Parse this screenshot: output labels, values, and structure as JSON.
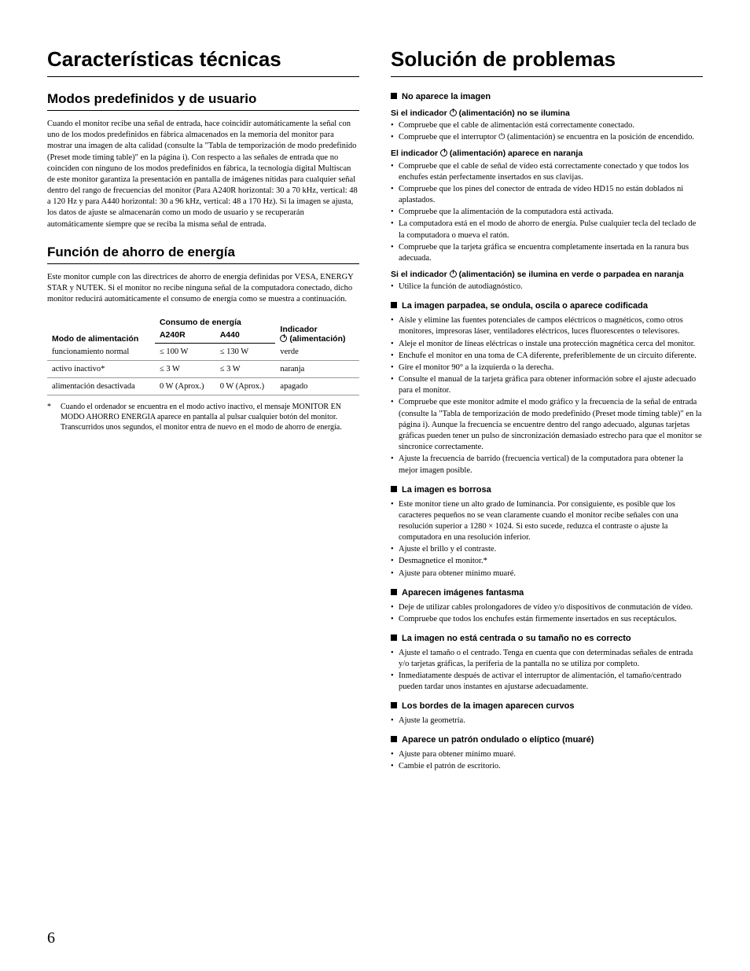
{
  "left": {
    "h1": "Características técnicas",
    "h2a": "Modos predefinidos y de usuario",
    "para_a": "Cuando el monitor recibe una señal de entrada, hace coincidir automáticamente la señal con uno de los modos predefinidos en fábrica almacenados en la memoria del monitor para mostrar una imagen de alta calidad (consulte la \"Tabla de temporización de modo predefinido (Preset mode timing table)\" en la página i). Con respecto a las señales de entrada que no coinciden con ninguno de los modos predefinidos en fábrica, la tecnología digital Multiscan de este monitor garantiza la presentación en pantalla de imágenes nítidas para cualquier señal dentro del rango de frecuencias del monitor (Para A240R horizontal: 30 a 70 kHz, vertical: 48 a 120 Hz y para A440 horizontal: 30 a 96 kHz, vertical: 48 a 170 Hz). Si la imagen se ajusta, los datos de ajuste se almacenarán como un modo de usuario y se recuperarán automáticamente siempre que se reciba la misma señal de entrada.",
    "h2b": "Función de ahorro de energía",
    "para_b": "Este monitor cumple con las directrices de ahorro de energía definidas por VESA, ENERGY STAR y NUTEK. Si el monitor no recibe ninguna señal de la computadora conectado, dicho monitor reducirá automáticamente el consumo de energía como se muestra a continuación.",
    "table": {
      "head_mode": "Modo de alimentación",
      "head_cons": "Consumo de energía",
      "head_a240r": "A240R",
      "head_a440": "A440",
      "head_ind": "Indicador",
      "head_alim": "(alimentación)",
      "rows": [
        {
          "mode": "funcionamiento normal",
          "a240r": "≤ 100 W",
          "a440": "≤ 130 W",
          "ind": "verde"
        },
        {
          "mode": "activo inactivo*",
          "a240r": "≤ 3 W",
          "a440": "≤ 3 W",
          "ind": "naranja"
        },
        {
          "mode": "alimentación desactivada",
          "a240r": "0 W (Aprox.)",
          "a440": "0 W (Aprox.)",
          "ind": "apagado"
        }
      ]
    },
    "footnote_mark": "*",
    "footnote": "Cuando el ordenador se encuentra en el modo activo inactivo, el mensaje MONITOR EN MODO AHORRO ENERGIA aparece en pantalla al pulsar cualquier botón del monitor. Transcurridos unos segundos, el monitor entra de nuevo en el modo de ahorro de energía."
  },
  "right": {
    "h1": "Solución de problemas",
    "s1": {
      "title": "No aparece la imagen",
      "c1": "Si el indicador ",
      "c1b": " (alimentación) no se ilumina",
      "c1_items": [
        "Compruebe que el cable de alimentación está correctamente conectado.",
        "Compruebe que el interruptor ⏻ (alimentación) se encuentra en la posición de encendido."
      ],
      "c2": "El indicador ",
      "c2b": " (alimentación) aparece en naranja",
      "c2_items": [
        "Compruebe que el cable de señal de vídeo está correctamente conectado y que todos los enchufes están perfectamente insertados en sus clavijas.",
        "Compruebe que los pines del conector de entrada de vídeo HD15 no están doblados ni aplastados.",
        "Compruebe que la alimentación de la computadora está activada.",
        "La computadora está en el modo de ahorro de energía. Pulse cualquier tecla del teclado de la computadora o mueva el ratón.",
        "Compruebe que la tarjeta gráfica se encuentra completamente insertada en la ranura bus adecuada."
      ],
      "c3": "Si el indicador ",
      "c3b": " (alimentación) se ilumina en verde o parpadea en naranja",
      "c3_items": [
        "Utilice la función de autodiagnóstico."
      ]
    },
    "s2": {
      "title": "La imagen parpadea, se ondula, oscila o aparece codificada",
      "items": [
        "Aísle y elimine las fuentes potenciales de campos eléctricos o magnéticos, como otros monitores, impresoras láser, ventiladores eléctricos, luces fluorescentes o televisores.",
        "Aleje el monitor de líneas eléctricas o instale una protección magnética cerca del monitor.",
        "Enchufe el monitor en una toma de CA diferente, preferiblemente de un circuito diferente.",
        "Gire el monitor 90° a la izquierda o la derecha.",
        "Consulte el manual de la tarjeta gráfica para obtener información sobre el ajuste adecuado para el monitor.",
        "Compruebe que este monitor admite el modo gráfico y la frecuencia de la señal de entrada (consulte la \"Tabla de temporización de modo predefinido (Preset mode timing table)\" en la página i). Aunque la frecuencia se encuentre dentro del rango adecuado, algunas tarjetas gráficas pueden tener un pulso de sincronización demasiado estrecho para que el monitor se sincronice correctamente.",
        "Ajuste la frecuencia de barrido (frecuencia vertical) de la computadora para obtener la mejor imagen posible."
      ]
    },
    "s3": {
      "title": "La imagen es borrosa",
      "items": [
        "Este monitor tiene un alto grado de luminancia. Por consiguiente, es posible que los caracteres pequeños no se vean claramente cuando el monitor recibe señales con una resolución superior a 1280 × 1024. Si esto sucede, reduzca el contraste o ajuste la computadora en una resolución inferior.",
        "Ajuste el brillo y el contraste.",
        "Desmagnetice el monitor.*",
        "Ajuste para obtener mínimo muaré."
      ]
    },
    "s4": {
      "title": "Aparecen imágenes fantasma",
      "items": [
        "Deje de utilizar cables prolongadores de vídeo y/o dispositivos de conmutación de vídeo.",
        "Compruebe que todos los enchufes están firmemente insertados en sus receptáculos."
      ]
    },
    "s5": {
      "title": "La imagen no está centrada o su tamaño no es correcto",
      "items": [
        "Ajuste el tamaño o el centrado. Tenga en cuenta que con determinadas señales de entrada y/o tarjetas gráficas, la periferia de la pantalla no se utiliza por completo.",
        "Inmediatamente después de activar el interruptor de alimentación, el tamaño/centrado pueden tardar unos instantes en ajustarse adecuadamente."
      ]
    },
    "s6": {
      "title": "Los bordes de la imagen aparecen curvos",
      "items": [
        "Ajuste la geometría."
      ]
    },
    "s7": {
      "title": "Aparece un patrón ondulado o elíptico (muaré)",
      "items": [
        "Ajuste para obtener mínimo muaré.",
        "Cambie el patrón de escritorio."
      ]
    }
  },
  "page_number": "6"
}
